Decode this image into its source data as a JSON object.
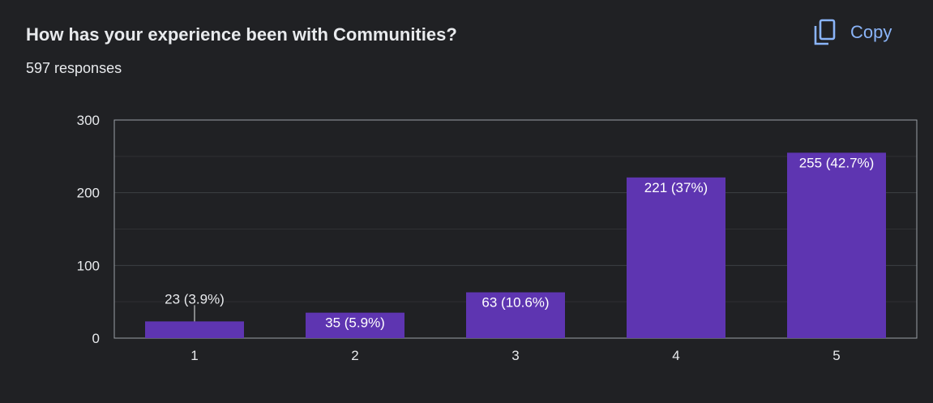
{
  "header": {
    "title": "How has your experience been with Communities?",
    "responses": "597 responses",
    "copy_label": "Copy"
  },
  "colors": {
    "background": "#202124",
    "bar": "#5e35b1",
    "text": "#e8eaed",
    "accent": "#8ab4f8"
  },
  "chart_data": {
    "type": "bar",
    "title": "How has your experience been with Communities?",
    "xlabel": "",
    "ylabel": "",
    "categories": [
      "1",
      "2",
      "3",
      "4",
      "5"
    ],
    "values": [
      23,
      35,
      63,
      221,
      255
    ],
    "labels": [
      "23 (3.9%)",
      "35 (5.9%)",
      "63 (10.6%)",
      "221 (37%)",
      "255 (42.7%)"
    ],
    "ylim": [
      0,
      300
    ],
    "yticks": [
      0,
      100,
      200,
      300
    ],
    "grid": true
  }
}
